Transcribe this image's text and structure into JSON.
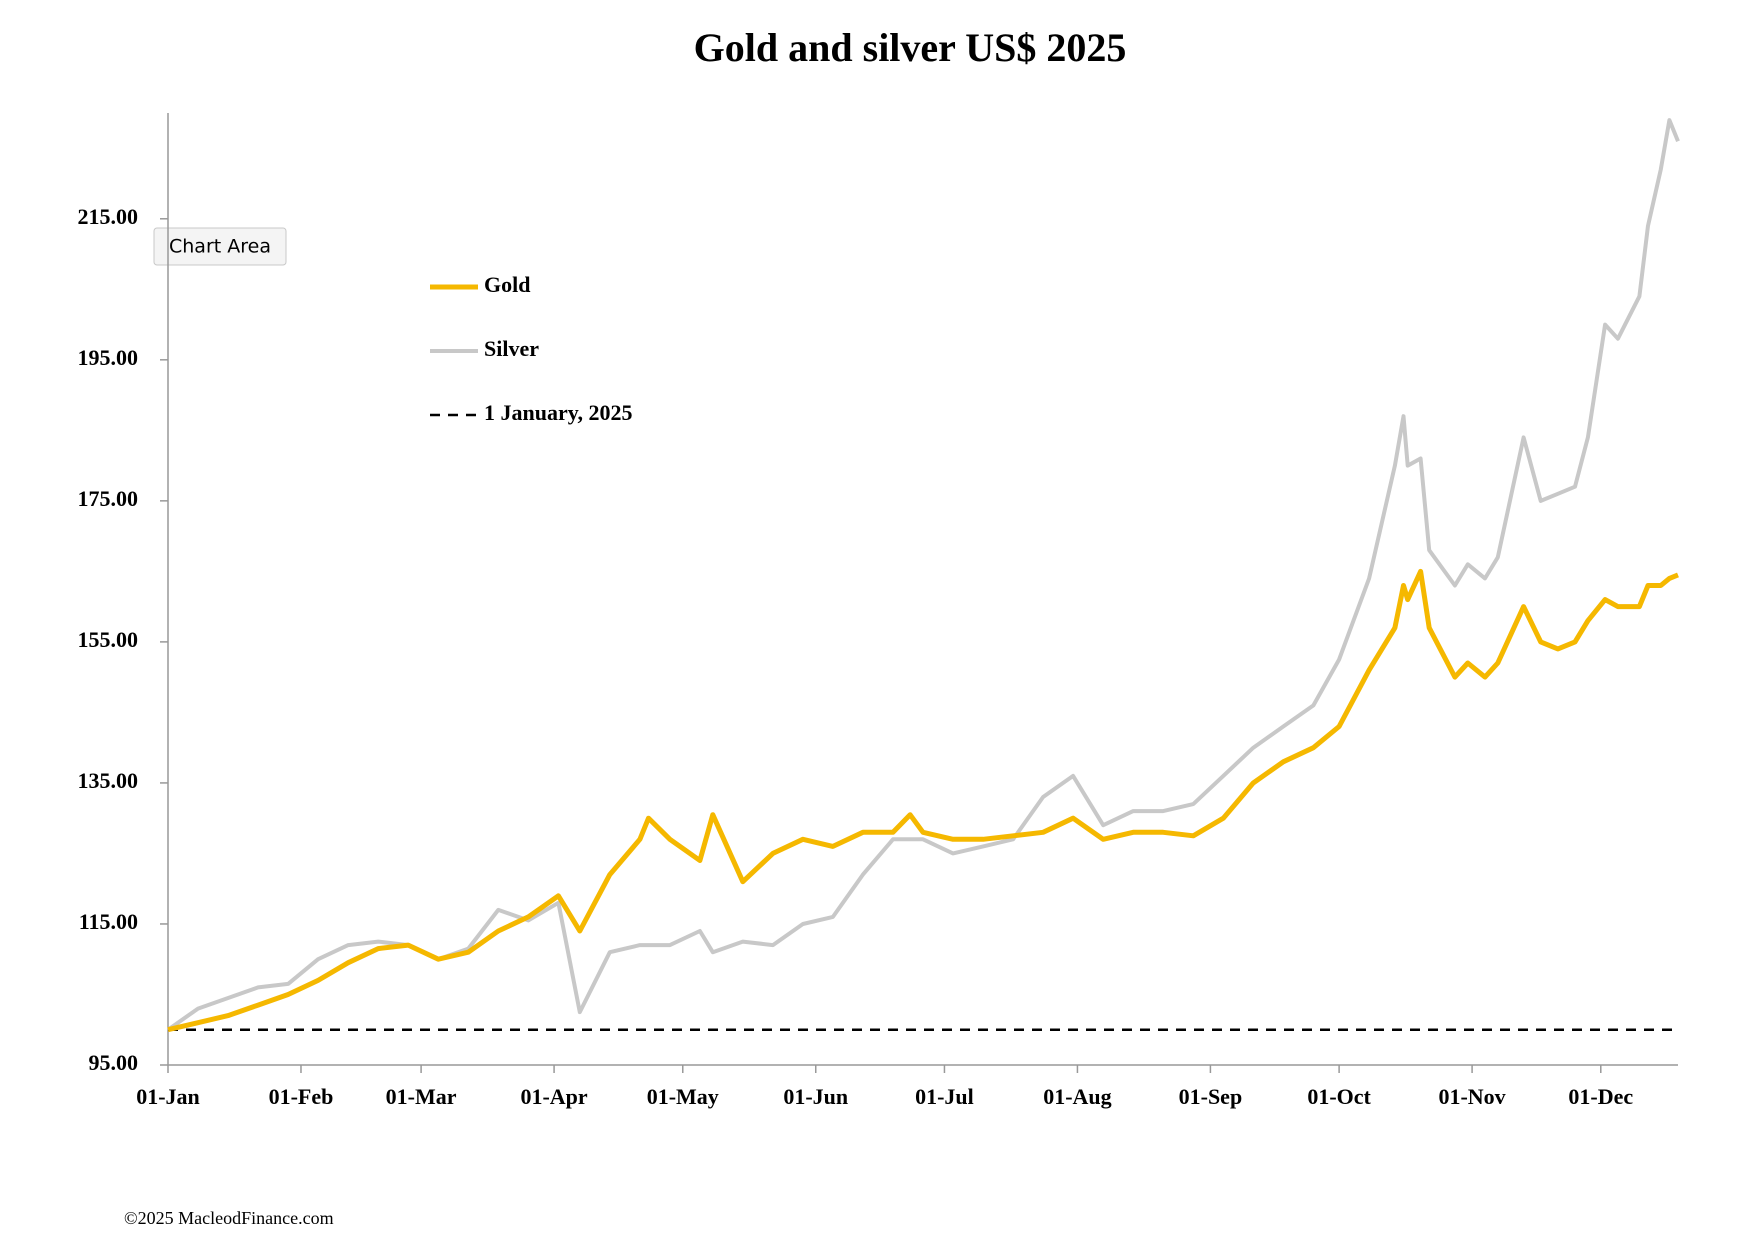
{
  "chart_data": {
    "type": "line",
    "title": "Gold and silver  US$ 2025",
    "x": [
      "01-Jan",
      "08-Jan",
      "15-Jan",
      "22-Jan",
      "29-Jan",
      "05-Feb",
      "12-Feb",
      "19-Feb",
      "26-Feb",
      "05-Mar",
      "12-Mar",
      "19-Mar",
      "26-Mar",
      "02-Apr",
      "07-Apr",
      "14-Apr",
      "21-Apr",
      "23-Apr",
      "28-Apr",
      "05-May",
      "08-May",
      "15-May",
      "22-May",
      "29-May",
      "05-Jun",
      "12-Jun",
      "19-Jun",
      "23-Jun",
      "26-Jun",
      "03-Jul",
      "10-Jul",
      "17-Jul",
      "24-Jul",
      "31-Jul",
      "07-Aug",
      "14-Aug",
      "21-Aug",
      "28-Aug",
      "04-Sep",
      "11-Sep",
      "18-Sep",
      "25-Sep",
      "01-Oct",
      "08-Oct",
      "14-Oct",
      "16-Oct",
      "17-Oct",
      "20-Oct",
      "22-Oct",
      "28-Oct",
      "31-Oct",
      "04-Nov",
      "07-Nov",
      "13-Nov",
      "17-Nov",
      "21-Nov",
      "25-Nov",
      "28-Nov",
      "02-Dec",
      "05-Dec",
      "10-Dec",
      "12-Dec",
      "15-Dec",
      "17-Dec",
      "19-Dec"
    ],
    "series": [
      {
        "name": "Gold",
        "color": "#f5b800",
        "values": [
          100,
          101,
          102,
          103.5,
          105,
          107,
          109.5,
          111.5,
          112,
          110,
          111,
          114,
          116,
          119,
          114,
          122,
          127,
          130,
          127,
          124,
          130.5,
          121,
          125,
          127,
          126,
          128,
          128,
          130.5,
          128,
          127,
          127,
          127.5,
          128,
          130,
          127,
          128,
          128,
          127.5,
          130,
          135,
          138,
          140,
          143,
          151,
          157,
          163,
          161,
          165,
          157,
          150,
          152,
          150,
          152,
          160,
          155,
          154,
          155,
          158,
          161,
          160,
          160,
          163,
          163,
          164,
          164.5
        ]
      },
      {
        "name": "Silver",
        "color": "#c8c8c8",
        "values": [
          100,
          103,
          104.5,
          106,
          106.5,
          110,
          112,
          112.5,
          112,
          110,
          111.5,
          117,
          115.5,
          118,
          102.5,
          111,
          112,
          112,
          112,
          114,
          111,
          112.5,
          112,
          115,
          116,
          122,
          127,
          127,
          127,
          125,
          126,
          127,
          133,
          136,
          129,
          131,
          131,
          132,
          136,
          140,
          143,
          146,
          152.5,
          164,
          180,
          187,
          180,
          181,
          168,
          163,
          166,
          164,
          167,
          184,
          175,
          176,
          177,
          184,
          200,
          198,
          204,
          214,
          222,
          229,
          226
        ]
      }
    ],
    "reference_line": {
      "name": "1 January, 2025",
      "value": 100
    },
    "xlim": [
      "01-Jan",
      "19-Dec"
    ],
    "xticks": [
      "01-Jan",
      "01-Feb",
      "01-Mar",
      "01-Apr",
      "01-May",
      "01-Jun",
      "01-Jul",
      "01-Aug",
      "01-Sep",
      "01-Oct",
      "01-Nov",
      "01-Dec"
    ],
    "ylim": [
      95,
      230
    ],
    "yticks": [
      {
        "value": 95,
        "label": "95.00"
      },
      {
        "value": 115,
        "label": "115.00"
      },
      {
        "value": 135,
        "label": "135.00"
      },
      {
        "value": 155,
        "label": "155.00"
      },
      {
        "value": 175,
        "label": "175.00"
      },
      {
        "value": 195,
        "label": "195.00"
      },
      {
        "value": 215,
        "label": "215.00"
      }
    ],
    "grid": false,
    "legend_position": "upper-left",
    "footnote": "©2025 MacleodFinance.com"
  },
  "tooltip": "Chart Area"
}
